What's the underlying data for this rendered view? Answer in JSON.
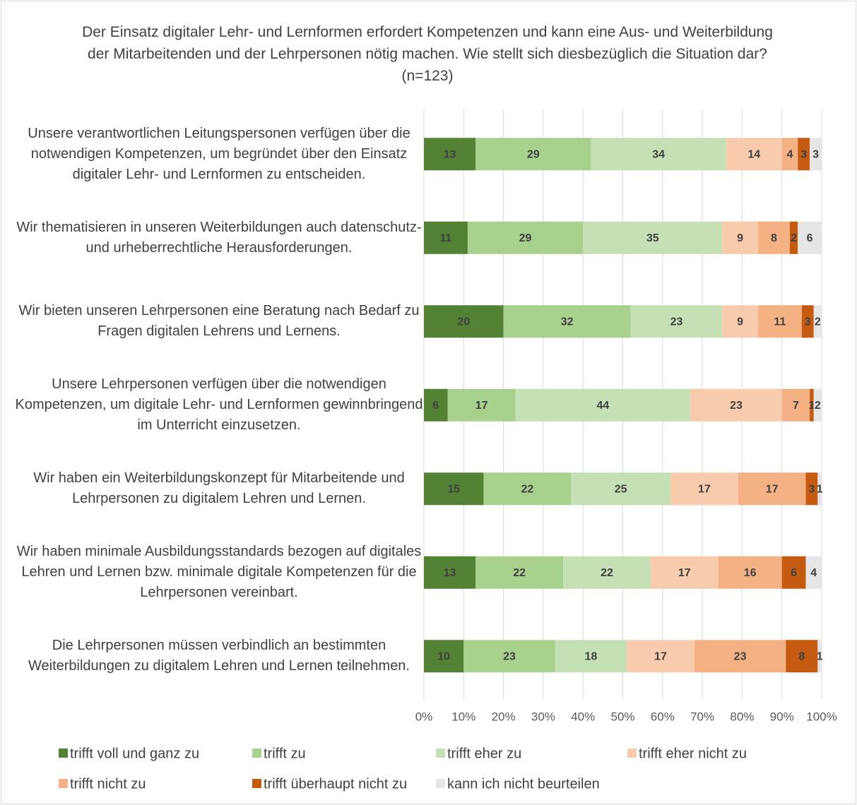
{
  "chart_data": {
    "type": "stacked_bar_horizontal",
    "title": "Der Einsatz digitaler Lehr- und Lernformen erfordert Kompetenzen und kann eine Aus- und Weiterbildung der Mitarbeitenden und der Lehrpersonen nötig machen. Wie stellt sich diesbezüglich die Situation dar? (n=123)",
    "categories": [
      "Unsere verantwortlichen Leitungspersonen verfügen über die notwendigen Kompetenzen, um begründet über den Einsatz digitaler Lehr- und Lernformen zu entscheiden.",
      "Wir thematisieren in unseren Weiterbildungen auch datenschutz- und urheberrechtliche Herausforderungen.",
      "Wir bieten unseren Lehrpersonen eine Beratung nach Bedarf zu Fragen digitalen Lehrens und Lernens.",
      "Unsere Lehrpersonen verfügen über die notwendigen Kompetenzen, um digitale Lehr- und Lernformen gewinnbringend im Unterricht einzusetzen.",
      "Wir haben ein Weiterbildungskonzept für Mitarbeitende und Lehrpersonen zu digitalem Lehren und Lernen.",
      "Wir haben minimale Ausbildungsstandards bezogen auf digitales Lehren und Lernen bzw. minimale digitale Kompetenzen für die Lehrpersonen vereinbart.",
      "Die Lehrpersonen müssen verbindlich an bestimmten Weiterbildungen zu digitalem Lehren und Lernen teilnehmen."
    ],
    "series": [
      {
        "name": "trifft voll und ganz zu",
        "color": "#548235",
        "values": [
          13,
          11,
          20,
          6,
          15,
          13,
          10
        ]
      },
      {
        "name": "trifft zu",
        "color": "#a9d18e",
        "values": [
          29,
          29,
          32,
          17,
          22,
          22,
          23
        ]
      },
      {
        "name": "trifft eher zu",
        "color": "#c5e0b4",
        "values": [
          34,
          35,
          23,
          44,
          25,
          22,
          18
        ]
      },
      {
        "name": "trifft eher nicht zu",
        "color": "#f8cbad",
        "values": [
          14,
          9,
          9,
          23,
          17,
          17,
          17
        ]
      },
      {
        "name": "trifft nicht zu",
        "color": "#f4b183",
        "values": [
          4,
          8,
          11,
          7,
          17,
          16,
          23
        ]
      },
      {
        "name": "trifft überhaupt nicht zu",
        "color": "#c55a11",
        "values": [
          3,
          2,
          3,
          1,
          3,
          6,
          8
        ]
      },
      {
        "name": "kann ich nicht beurteilen",
        "color": "#e7e6e6",
        "values": [
          3,
          6,
          2,
          2,
          1,
          4,
          1
        ]
      }
    ],
    "xlim": [
      0,
      100
    ],
    "xticks": [
      {
        "value": 0,
        "label": "0%"
      },
      {
        "value": 10,
        "label": "10%"
      },
      {
        "value": 20,
        "label": "20%"
      },
      {
        "value": 30,
        "label": "30%"
      },
      {
        "value": 40,
        "label": "40%"
      },
      {
        "value": 50,
        "label": "50%"
      },
      {
        "value": 60,
        "label": "60%"
      },
      {
        "value": 70,
        "label": "70%"
      },
      {
        "value": 80,
        "label": "80%"
      },
      {
        "value": 90,
        "label": "90%"
      },
      {
        "value": 100,
        "label": "100%"
      }
    ],
    "grid": true,
    "legend": "bottom"
  }
}
